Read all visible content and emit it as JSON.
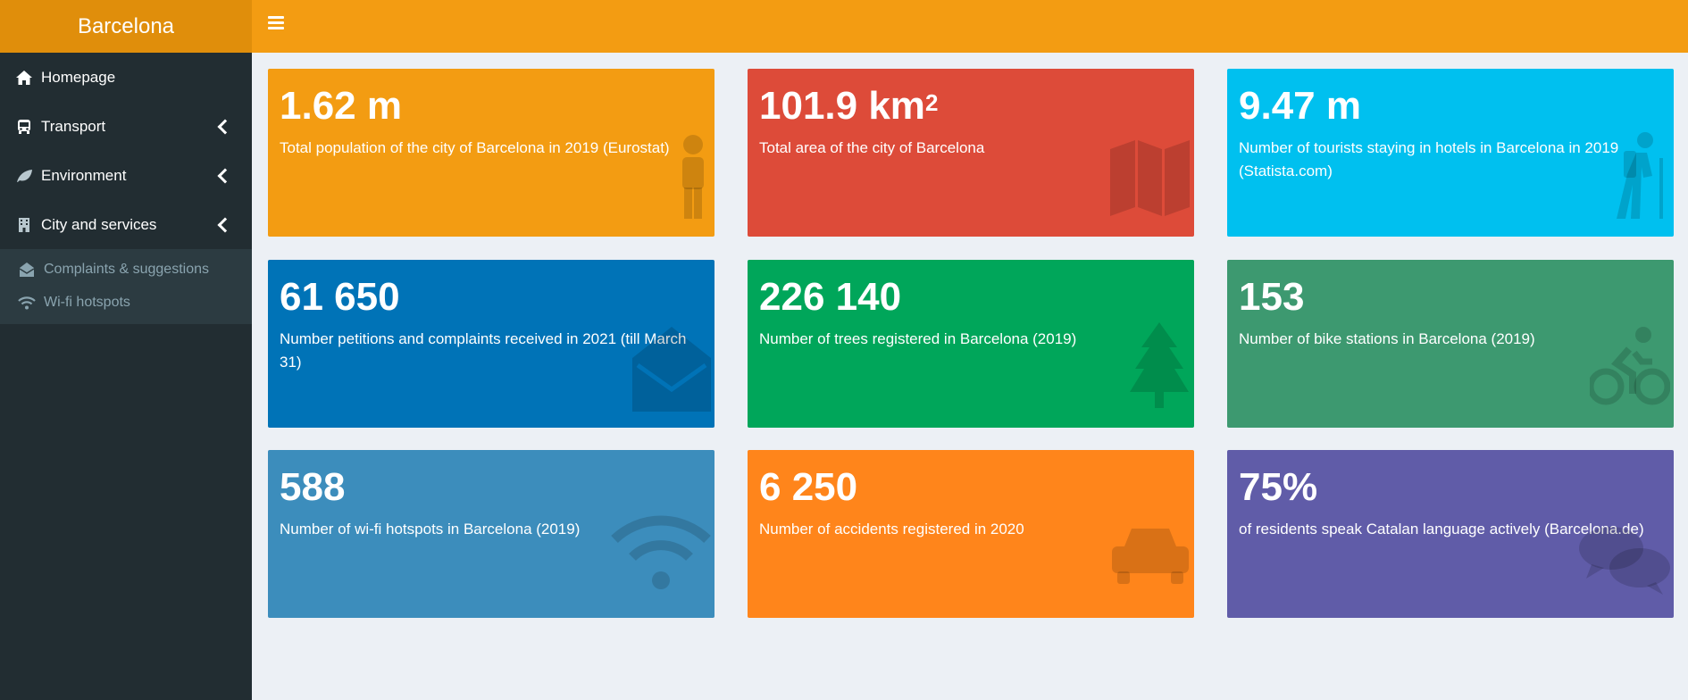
{
  "header": {
    "brand": "Barcelona"
  },
  "sidebar": {
    "items": [
      {
        "label": "Homepage",
        "icon": "home-icon"
      },
      {
        "label": "Transport",
        "icon": "bus-icon"
      },
      {
        "label": "Environment",
        "icon": "leaf-icon"
      },
      {
        "label": "City and services",
        "icon": "building-icon"
      }
    ],
    "submenu": [
      {
        "label": "Complaints & suggestions",
        "icon": "envelope-open-icon"
      },
      {
        "label": "Wi-fi hotspots",
        "icon": "wifi-icon"
      }
    ]
  },
  "cards": [
    {
      "value": "1.62 m",
      "desc": "Total population of the city of Barcelona in 2019 (Eurostat)",
      "icon": "person-icon",
      "color": "#f39c12"
    },
    {
      "value": "101.9 km",
      "value_sup": "2",
      "desc": "Total area of the city of Barcelona",
      "icon": "map-icon",
      "color": "#dd4b39"
    },
    {
      "value": "9.47 m",
      "desc": "Number of tourists staying in hotels in Barcelona in 2019 (Statista.com)",
      "icon": "hiking-icon",
      "color": "#00c0ef"
    },
    {
      "value": "61 650",
      "desc": "Number petitions and complaints received in 2021 (till March 31)",
      "icon": "envelope-open-icon",
      "color": "#0073b7"
    },
    {
      "value": "226 140",
      "desc": "Number of trees registered in Barcelona (2019)",
      "icon": "tree-icon",
      "color": "#00a65a"
    },
    {
      "value": "153",
      "desc": "Number of bike stations in Barcelona (2019)",
      "icon": "bicycle-icon",
      "color": "#3d9970"
    },
    {
      "value": "588",
      "desc": "Number of wi-fi hotspots in Barcelona (2019)",
      "icon": "wifi-icon",
      "color": "#3c8dbc"
    },
    {
      "value": "6 250",
      "desc": "Number of accidents registered in 2020",
      "icon": "car-icon",
      "color": "#ff851b"
    },
    {
      "value": "75%",
      "desc": "of residents speak Catalan language actively (Barcelona.de)",
      "icon": "comments-icon",
      "color": "#605ca8"
    }
  ]
}
